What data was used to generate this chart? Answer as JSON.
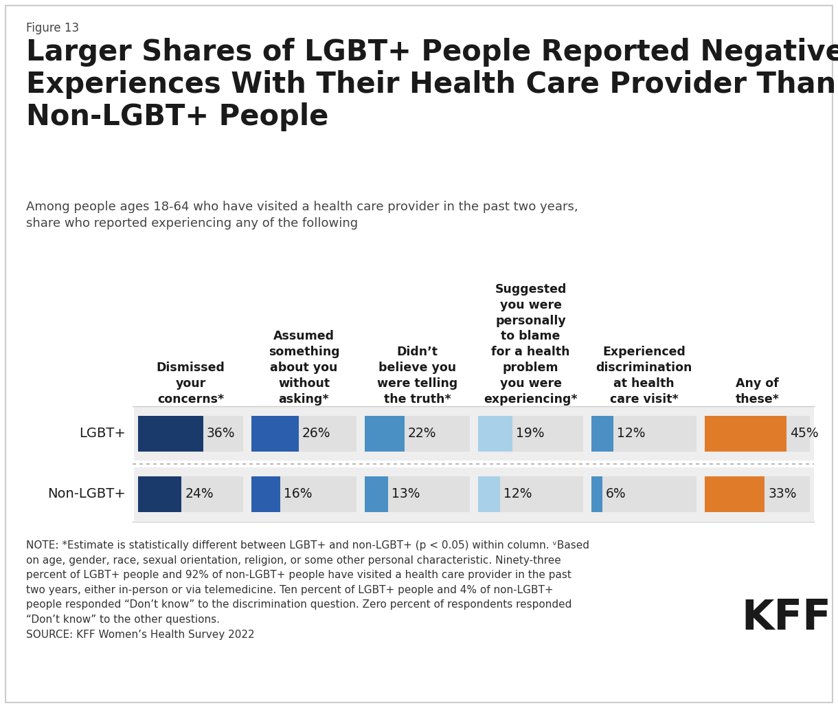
{
  "figure_label": "Figure 13",
  "title": "Larger Shares of LGBT+ People Reported Negative\nExperiences With Their Health Care Provider Than\nNon-LGBT+ People",
  "subtitle": "Among people ages 18-64 who have visited a health care provider in the past two years,\nshare who reported experiencing any of the following",
  "categories": [
    "Dismissed\nyour\nconcerns*",
    "Assumed\nsomething\nabout you\nwithout\nasking*",
    "Didn’t\nbelieve you\nwere telling\nthe truth*",
    "Suggested\nyou were\npersonally\nto blame\nfor a health\nproblem\nyou were\nexperiencing*",
    "Experienced\ndiscrimination\nat health\ncare visit*",
    "Any of\nthese*"
  ],
  "lgbt_values": [
    36,
    26,
    22,
    19,
    12,
    45
  ],
  "non_lgbt_values": [
    24,
    16,
    13,
    12,
    6,
    33
  ],
  "bar_colors": [
    "#1a3a6b",
    "#2b5fad",
    "#4a90c4",
    "#a8d0e8",
    "#4a90c4",
    "#e07b2a"
  ],
  "row_labels": [
    "LGBT+",
    "Non-LGBT+"
  ],
  "note_text": "NOTE: *Estimate is statistically different between LGBT+ and non-LGBT+ (p < 0.05) within column. ᵛBased\non age, gender, race, sexual orientation, religion, or some other personal characteristic. Ninety-three\npercent of LGBT+ people and 92% of non-LGBT+ people have visited a health care provider in the past\ntwo years, either in-person or via telemedicine. Ten percent of LGBT+ people and 4% of non-LGBT+\npeople responded “Don’t know” to the discrimination question. Zero percent of respondents responded\n“Don’t know” to the other questions.\nSOURCE: KFF Women’s Health Survey 2022"
}
